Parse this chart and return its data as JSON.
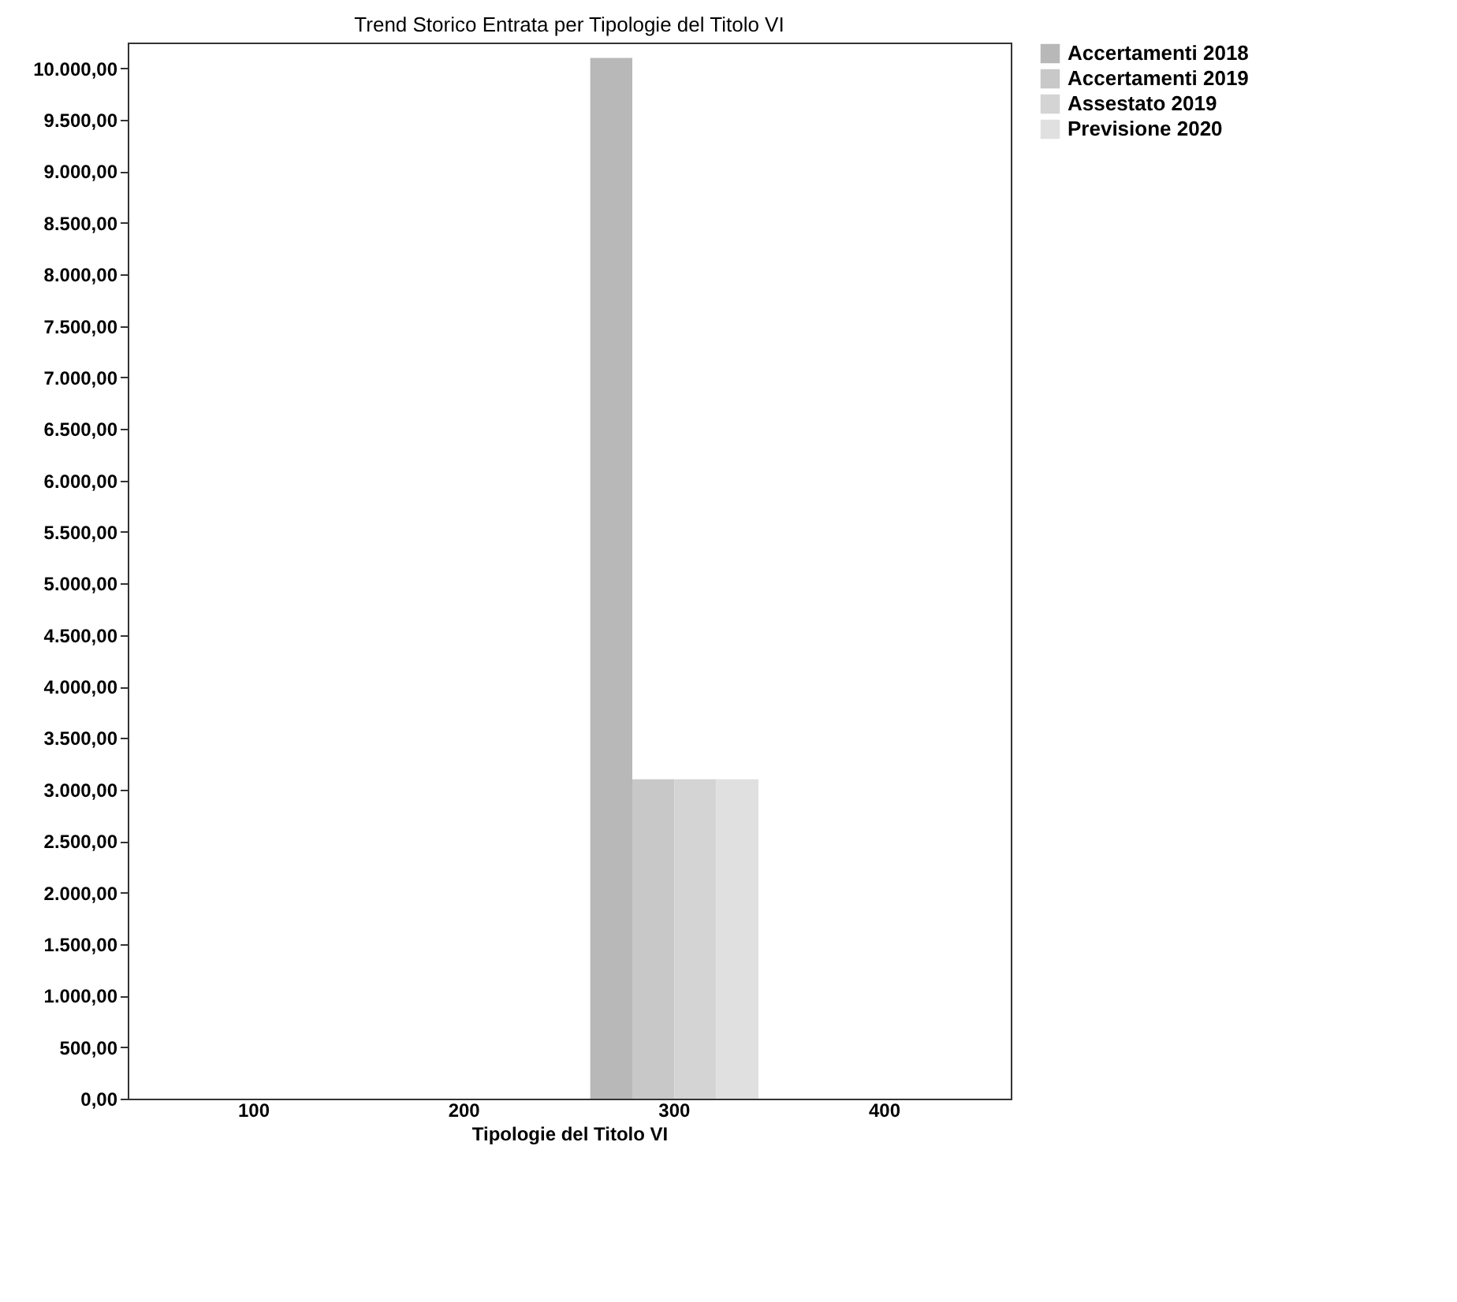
{
  "chart_data": {
    "type": "bar",
    "title": "Trend Storico Entrata per Tipologie del Titolo VI",
    "xlabel": "Tipologie del Titolo VI",
    "categories": [
      "100",
      "200",
      "300",
      "400"
    ],
    "series": [
      {
        "name": "Accertamenti 2018",
        "color": "#b8b8b8",
        "values": [
          0,
          0,
          10100,
          0
        ]
      },
      {
        "name": "Accertamenti 2019",
        "color": "#c8c8c8",
        "values": [
          0,
          0,
          3100,
          0
        ]
      },
      {
        "name": "Assestato 2019",
        "color": "#d4d4d4",
        "values": [
          0,
          0,
          3100,
          0
        ]
      },
      {
        "name": "Previsione 2020",
        "color": "#e0e0e0",
        "values": [
          0,
          0,
          3100,
          0
        ]
      }
    ],
    "ylim": [
      0,
      10250
    ],
    "yticks": [
      {
        "value": 0,
        "label": "0,00"
      },
      {
        "value": 500,
        "label": "500,00"
      },
      {
        "value": 1000,
        "label": "1.000,00"
      },
      {
        "value": 1500,
        "label": "1.500,00"
      },
      {
        "value": 2000,
        "label": "2.000,00"
      },
      {
        "value": 2500,
        "label": "2.500,00"
      },
      {
        "value": 3000,
        "label": "3.000,00"
      },
      {
        "value": 3500,
        "label": "3.500,00"
      },
      {
        "value": 4000,
        "label": "4.000,00"
      },
      {
        "value": 4500,
        "label": "4.500,00"
      },
      {
        "value": 5000,
        "label": "5.000,00"
      },
      {
        "value": 5500,
        "label": "5.500,00"
      },
      {
        "value": 6000,
        "label": "6.000,00"
      },
      {
        "value": 6500,
        "label": "6.500,00"
      },
      {
        "value": 7000,
        "label": "7.000,00"
      },
      {
        "value": 7500,
        "label": "7.500,00"
      },
      {
        "value": 8000,
        "label": "8.000,00"
      },
      {
        "value": 8500,
        "label": "8.500,00"
      },
      {
        "value": 9000,
        "label": "9.000,00"
      },
      {
        "value": 9500,
        "label": "9.500,00"
      },
      {
        "value": 10000,
        "label": "10.000,00"
      }
    ],
    "grid": false,
    "legend": "top right"
  }
}
